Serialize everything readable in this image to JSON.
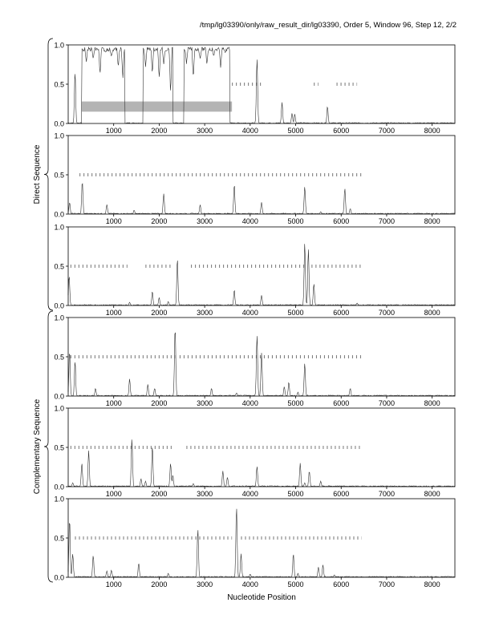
{
  "header": {
    "title": "/tmp/lg03390/only/raw_result_dir/lg03390, Order 5, Window 96, Step 12, 2/2"
  },
  "chart_data": {
    "type": "line",
    "xlabel": "Nucleotide Position",
    "xlim": [
      0,
      8500
    ],
    "ylim": [
      0,
      1
    ],
    "xticks": [
      1000,
      2000,
      3000,
      4000,
      5000,
      6000,
      7000,
      8000
    ],
    "yticks": [
      0.0,
      0.5,
      1.0
    ],
    "ytick_labels": [
      "0.0",
      "0.5",
      "1.0"
    ],
    "groups": [
      {
        "label": "Direct Sequence",
        "panels": [
          0,
          1,
          2
        ]
      },
      {
        "label": "Complementary Sequence",
        "panels": [
          3,
          4,
          5
        ]
      }
    ],
    "panels": [
      {
        "highlight_bar": {
          "x": [
            300,
            3600
          ],
          "y": [
            0.15,
            0.28
          ]
        },
        "peaks": [
          [
            150,
            0.66
          ],
          [
            4150,
            0.83
          ],
          [
            4700,
            0.27
          ],
          [
            4920,
            0.13
          ],
          [
            4980,
            0.12
          ],
          [
            5700,
            0.22
          ]
        ],
        "plateaus": [
          [
            300,
            1250,
            0.97
          ],
          [
            1650,
            2300,
            0.97
          ],
          [
            2550,
            3550,
            0.97
          ]
        ],
        "dips": [
          [
            400,
            0.78
          ],
          [
            550,
            0.82
          ],
          [
            700,
            0.6
          ],
          [
            820,
            0.9
          ],
          [
            950,
            0.85
          ],
          [
            1100,
            0.7
          ],
          [
            1200,
            0.55
          ],
          [
            1350,
            0.45
          ],
          [
            1450,
            0.2
          ],
          [
            1550,
            0.5
          ],
          [
            1700,
            0.72
          ],
          [
            1850,
            0.62
          ],
          [
            2000,
            0.55
          ],
          [
            2100,
            0.75
          ],
          [
            2250,
            0.35
          ],
          [
            2400,
            0.15
          ],
          [
            2600,
            0.75
          ],
          [
            2750,
            0.55
          ],
          [
            2900,
            0.82
          ],
          [
            3050,
            0.75
          ],
          [
            3200,
            0.85
          ],
          [
            3350,
            0.7
          ],
          [
            3450,
            0.9
          ]
        ],
        "tick_row": {
          "y": 0.5,
          "ranges": [
            [
              3600,
              4250
            ],
            [
              5400,
              5500
            ],
            [
              5900,
              6350
            ]
          ]
        }
      },
      {
        "peaks": [
          [
            30,
            0.15
          ],
          [
            310,
            0.42
          ],
          [
            850,
            0.12
          ],
          [
            1450,
            0.05
          ],
          [
            2100,
            0.26
          ],
          [
            2900,
            0.12
          ],
          [
            3650,
            0.38
          ],
          [
            4250,
            0.15
          ],
          [
            5200,
            0.35
          ],
          [
            5550,
            0.03
          ],
          [
            6080,
            0.33
          ],
          [
            6200,
            0.07
          ]
        ],
        "tick_row": {
          "y": 0.5,
          "ranges": [
            [
              250,
              6450
            ]
          ]
        }
      },
      {
        "peaks": [
          [
            20,
            0.38
          ],
          [
            1350,
            0.04
          ],
          [
            1850,
            0.18
          ],
          [
            2000,
            0.1
          ],
          [
            2200,
            0.05
          ],
          [
            2400,
            0.6
          ],
          [
            3650,
            0.2
          ],
          [
            4250,
            0.13
          ],
          [
            5200,
            0.8
          ],
          [
            5280,
            0.72
          ],
          [
            5400,
            0.28
          ],
          [
            6350,
            0.03
          ]
        ],
        "tick_row": {
          "y": 0.5,
          "ranges": [
            [
              50,
              1300
            ],
            [
              1700,
              2300
            ],
            [
              2700,
              5200
            ],
            [
              5350,
              6450
            ]
          ]
        }
      },
      {
        "peaks": [
          [
            30,
            0.58
          ],
          [
            150,
            0.45
          ],
          [
            600,
            0.1
          ],
          [
            1350,
            0.22
          ],
          [
            1750,
            0.15
          ],
          [
            1900,
            0.1
          ],
          [
            2350,
            0.88
          ],
          [
            3150,
            0.1
          ],
          [
            3700,
            0.04
          ],
          [
            4150,
            0.78
          ],
          [
            4250,
            0.55
          ],
          [
            4750,
            0.12
          ],
          [
            4850,
            0.18
          ],
          [
            5050,
            0.05
          ],
          [
            5200,
            0.42
          ],
          [
            6200,
            0.1
          ]
        ],
        "tick_row": {
          "y": 0.5,
          "ranges": [
            [
              50,
              2350
            ],
            [
              2450,
              6450
            ]
          ]
        }
      },
      {
        "peaks": [
          [
            100,
            0.05
          ],
          [
            300,
            0.3
          ],
          [
            450,
            0.46
          ],
          [
            1400,
            0.62
          ],
          [
            1600,
            0.1
          ],
          [
            1700,
            0.07
          ],
          [
            1850,
            0.52
          ],
          [
            2250,
            0.3
          ],
          [
            2300,
            0.15
          ],
          [
            2750,
            0.04
          ],
          [
            3400,
            0.2
          ],
          [
            3500,
            0.12
          ],
          [
            4150,
            0.26
          ],
          [
            5100,
            0.3
          ],
          [
            5200,
            0.05
          ],
          [
            5300,
            0.2
          ],
          [
            5550,
            0.07
          ]
        ],
        "tick_row": {
          "y": 0.5,
          "ranges": [
            [
              50,
              2300
            ],
            [
              2600,
              6450
            ]
          ]
        }
      },
      {
        "peaks": [
          [
            30,
            0.75
          ],
          [
            100,
            0.3
          ],
          [
            550,
            0.28
          ],
          [
            850,
            0.08
          ],
          [
            950,
            0.09
          ],
          [
            1550,
            0.18
          ],
          [
            2200,
            0.05
          ],
          [
            2850,
            0.62
          ],
          [
            3700,
            0.9
          ],
          [
            3800,
            0.3
          ],
          [
            4000,
            0.04
          ],
          [
            4950,
            0.3
          ],
          [
            5050,
            0.05
          ],
          [
            5500,
            0.13
          ],
          [
            5600,
            0.16
          ],
          [
            5850,
            0.03
          ]
        ],
        "tick_row": {
          "y": 0.5,
          "ranges": [
            [
              150,
              3600
            ],
            [
              3800,
              6450
            ]
          ]
        }
      }
    ]
  }
}
